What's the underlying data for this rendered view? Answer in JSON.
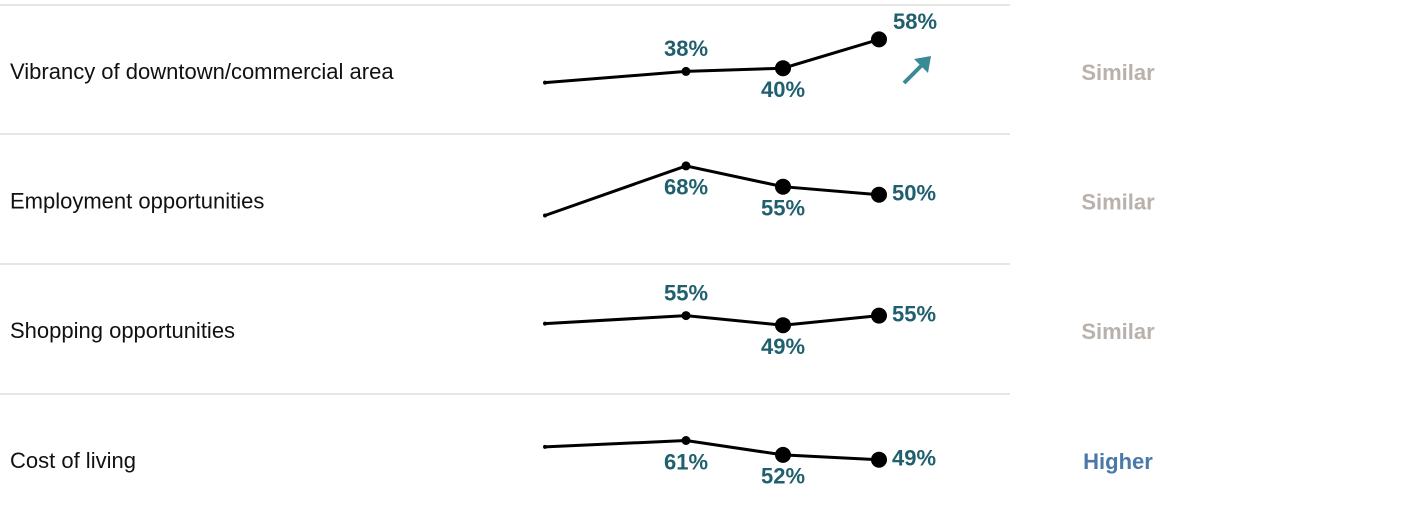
{
  "rows": [
    {
      "label": "Vibrancy of downtown/commercial area",
      "values": [
        31,
        38,
        40,
        58
      ],
      "value_labels": [
        null,
        "38%",
        "40%",
        "58%"
      ],
      "comparison": "Similar",
      "comparison_color": "#b9b1ab"
    },
    {
      "label": "Employment opportunities",
      "values": [
        37,
        68,
        55,
        50
      ],
      "value_labels": [
        null,
        "68%",
        "55%",
        "50%"
      ],
      "comparison": "Similar",
      "comparison_color": "#b9b1ab"
    },
    {
      "label": "Shopping opportunities",
      "values": [
        50,
        55,
        49,
        55
      ],
      "value_labels": [
        null,
        "55%",
        "49%",
        "55%"
      ],
      "comparison": "Similar",
      "comparison_color": "#b9b1ab"
    },
    {
      "label": "Cost of living",
      "values": [
        57,
        61,
        52,
        49
      ],
      "value_labels": [
        null,
        "61%",
        "52%",
        "49%"
      ],
      "comparison": "Higher",
      "comparison_color": "#4a78a8"
    }
  ]
}
